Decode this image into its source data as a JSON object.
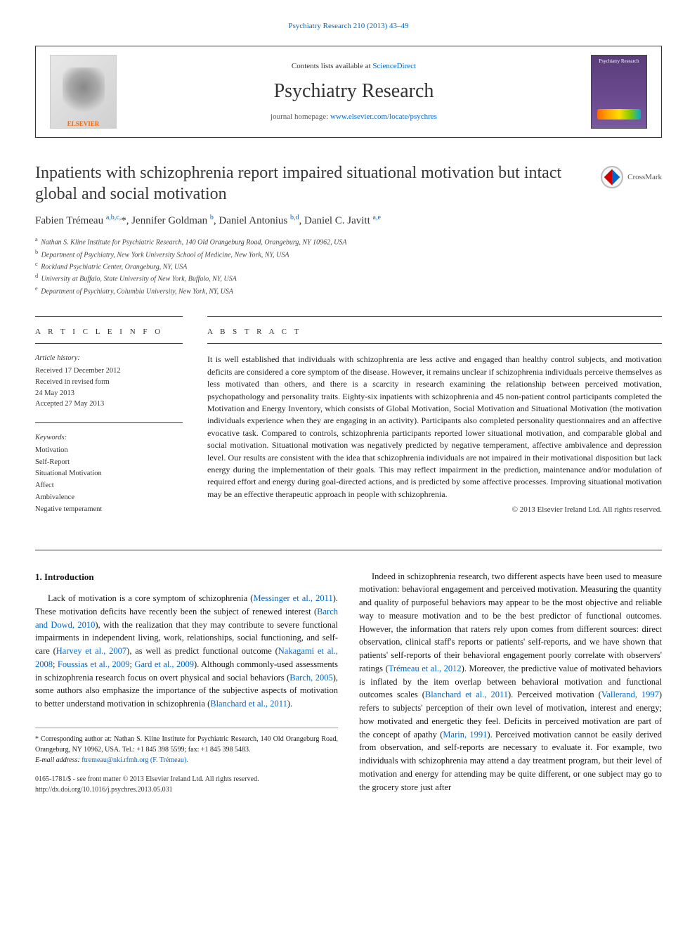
{
  "top_link": {
    "prefix": "",
    "journal_ref": "Psychiatry Research 210 (2013) 43–49"
  },
  "header": {
    "contents_prefix": "Contents lists available at ",
    "contents_link": "ScienceDirect",
    "journal_name": "Psychiatry Research",
    "homepage_prefix": "journal homepage: ",
    "homepage_url": "www.elsevier.com/locate/psychres",
    "elsevier_label": "ELSEVIER",
    "cover_label": "Psychiatry Research"
  },
  "crossmark_label": "CrossMark",
  "title": "Inpatients with schizophrenia report impaired situational motivation but intact global and social motivation",
  "authors_html": "Fabien Trémeau <sup>a,b,c,</sup>*, Jennifer Goldman <sup>b</sup>, Daniel Antonius <sup>b,d</sup>, Daniel C. Javitt <sup>a,e</sup>",
  "affiliations": [
    {
      "sup": "a",
      "text": "Nathan S. Kline Institute for Psychiatric Research, 140 Old Orangeburg Road, Orangeburg, NY 10962, USA"
    },
    {
      "sup": "b",
      "text": "Department of Psychiatry, New York University School of Medicine, New York, NY, USA"
    },
    {
      "sup": "c",
      "text": "Rockland Psychiatric Center, Orangeburg, NY, USA"
    },
    {
      "sup": "d",
      "text": "University at Buffalo, State University of New York, Buffalo, NY, USA"
    },
    {
      "sup": "e",
      "text": "Department of Psychiatry, Columbia University, New York, NY, USA"
    }
  ],
  "article_info": {
    "heading": "A R T I C L E  I N F O",
    "history_label": "Article history:",
    "history_lines": [
      "Received 17 December 2012",
      "Received in revised form",
      "24 May 2013",
      "Accepted 27 May 2013"
    ],
    "keywords_label": "Keywords:",
    "keywords": [
      "Motivation",
      "Self-Report",
      "Situational Motivation",
      "Affect",
      "Ambivalence",
      "Negative temperament"
    ]
  },
  "abstract": {
    "heading": "A B S T R A C T",
    "text": "It is well established that individuals with schizophrenia are less active and engaged than healthy control subjects, and motivation deficits are considered a core symptom of the disease. However, it remains unclear if schizophrenia individuals perceive themselves as less motivated than others, and there is a scarcity in research examining the relationship between perceived motivation, psychopathology and personality traits. Eighty-six inpatients with schizophrenia and 45 non-patient control participants completed the Motivation and Energy Inventory, which consists of Global Motivation, Social Motivation and Situational Motivation (the motivation individuals experience when they are engaging in an activity). Participants also completed personality questionnaires and an affective evocative task. Compared to controls, schizophrenia participants reported lower situational motivation, and comparable global and social motivation. Situational motivation was negatively predicted by negative temperament, affective ambivalence and depression level. Our results are consistent with the idea that schizophrenia individuals are not impaired in their motivational disposition but lack energy during the implementation of their goals. This may reflect impairment in the prediction, maintenance and/or modulation of required effort and energy during goal-directed actions, and is predicted by some affective processes. Improving situational motivation may be an effective therapeutic approach in people with schizophrenia.",
    "copyright": "© 2013 Elsevier Ireland Ltd. All rights reserved."
  },
  "intro": {
    "heading": "1.  Introduction",
    "col1_para1_pre": "Lack of motivation is a core symptom of schizophrenia (",
    "col1_ref1": "Messinger et al., 2011",
    "col1_para1_mid1": "). These motivation deficits have recently been the subject of renewed interest (",
    "col1_ref2": "Barch and Dowd, 2010",
    "col1_para1_mid2": "), with the realization that they may contribute to severe functional impairments in independent living, work, relationships, social functioning, and self-care (",
    "col1_ref3": "Harvey et al., 2007",
    "col1_para1_mid3": "), as well as predict functional outcome (",
    "col1_ref4": "Nakagami et al., 2008",
    "col1_sep1": "; ",
    "col1_ref5": "Foussias et al., 2009",
    "col1_sep2": "; ",
    "col1_ref6": "Gard et al., 2009",
    "col1_para1_mid4": "). Although commonly-used assessments in schizophrenia research focus on overt physical and social behaviors (",
    "col1_ref7": "Barch, 2005",
    "col1_para1_mid5": "), some authors also emphasize the importance of the subjective aspects of motivation to better understand motivation in schizophrenia (",
    "col1_ref8": "Blanchard et al., 2011",
    "col1_para1_end": ").",
    "col2_pre": "Indeed in schizophrenia research, two different aspects have been used to measure motivation: behavioral engagement and perceived motivation. Measuring the quantity and quality of purposeful behaviors may appear to be the most objective and reliable way to measure motivation and to be the best predictor of functional outcomes. However, the information that raters rely upon comes from different sources: direct observation, clinical staff's reports or patients' self-reports, and we have shown that patients' self-reports of their behavioral engagement poorly correlate with observers' ratings (",
    "col2_ref1": "Trémeau et al., 2012",
    "col2_mid1": "). Moreover, the predictive value of motivated behaviors is inflated by the item overlap between behavioral motivation and functional outcomes scales (",
    "col2_ref2": "Blanchard et al., 2011",
    "col2_mid2": "). Perceived motivation (",
    "col2_ref3": "Vallerand, 1997",
    "col2_mid3": ") refers to subjects' perception of their own level of motivation, interest and energy; how motivated and energetic they feel. Deficits in perceived motivation are part of the concept of apathy (",
    "col2_ref4": "Marin, 1991",
    "col2_end": "). Perceived motivation cannot be easily derived from observation, and self-reports are necessary to evaluate it. For example, two individuals with schizophrenia may attend a day treatment program, but their level of motivation and energy for attending may be quite different, or one subject may go to the grocery store just after"
  },
  "footer": {
    "corresponding": "* Corresponding author at: Nathan S. Kline Institute for Psychiatric Research, 140 Old Orangeburg Road, Orangeburg, NY 10962, USA. Tel.: +1 845 398 5599; fax: +1 845 398 5483.",
    "email_label": "E-mail address: ",
    "email": "ftremeau@nki.rfmh.org (F. Trémeau).",
    "issn_line": "0165-1781/$ - see front matter © 2013 Elsevier Ireland Ltd. All rights reserved.",
    "doi_line": "http://dx.doi.org/10.1016/j.psychres.2013.05.031"
  },
  "colors": {
    "link": "#0066cc",
    "text": "#1a1a1a",
    "elsevier_orange": "#ff6600",
    "cover_bg": "#5a3d7a"
  },
  "typography": {
    "title_fontsize": 24,
    "journal_fontsize": 28,
    "body_fontsize": 12.5,
    "abstract_fontsize": 12,
    "affil_fontsize": 10
  }
}
